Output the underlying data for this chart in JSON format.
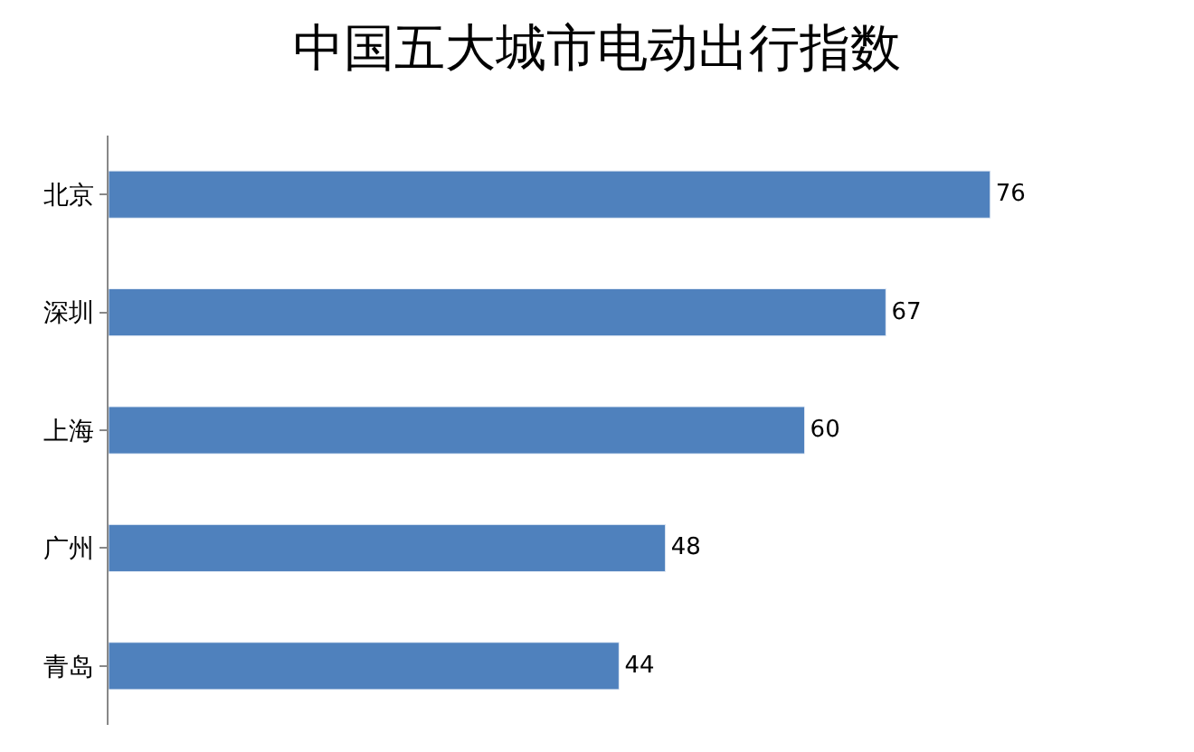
{
  "chart_data": {
    "type": "bar",
    "orientation": "horizontal",
    "title": "中国五大城市电动出行指数",
    "categories": [
      "北京",
      "深圳",
      "上海",
      "广州",
      "青岛"
    ],
    "values": [
      76,
      67,
      60,
      48,
      44
    ],
    "color": "#4f81bd",
    "data_labels": true,
    "tick_labels": "y"
  }
}
